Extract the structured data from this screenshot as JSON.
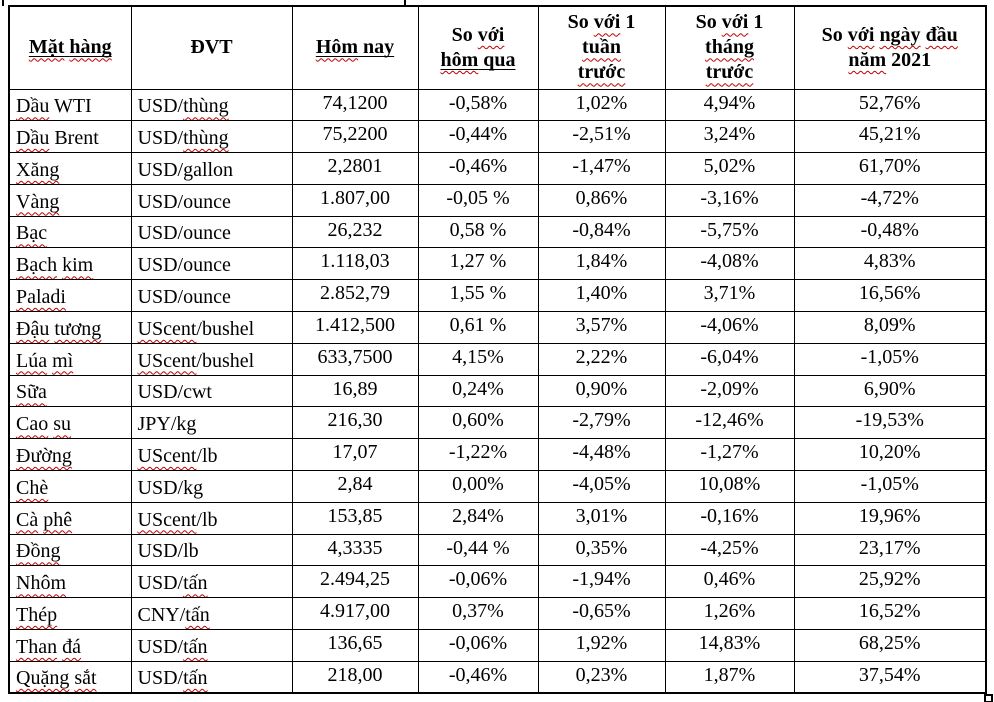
{
  "colors": {
    "text": "#000000",
    "border": "#000000",
    "background": "#ffffff"
  },
  "spellcheck": {
    "color": "#c00000",
    "words": [
      "Mặt",
      "hàng",
      "Hôm",
      "với",
      "hôm",
      "tuần",
      "trước",
      "tháng",
      "ngày",
      "đầu",
      "năm",
      "Dầu",
      "Xăng",
      "Vàng",
      "Bạc",
      "Bạch",
      "kim",
      "Paladi",
      "Đậu",
      "tương",
      "Lúa",
      "mì",
      "Sữa",
      "Cao",
      "su",
      "Đường",
      "Chè",
      "Cà",
      "phê",
      "Đồng",
      "Nhôm",
      "Thép",
      "Than",
      "đá",
      "Quặng",
      "sắt",
      "thùng",
      "UScent",
      "tấn"
    ]
  },
  "table": {
    "columns": [
      {
        "id": "name",
        "lines": [
          {
            "text": "Mặt hàng",
            "underline": true
          }
        ]
      },
      {
        "id": "unit",
        "lines": [
          {
            "text": "ĐVT",
            "underline": false
          }
        ]
      },
      {
        "id": "today",
        "lines": [
          {
            "text": "Hôm nay",
            "underline": true
          }
        ]
      },
      {
        "id": "vs_yesterday",
        "lines": [
          {
            "text": "So với",
            "underline": false
          },
          {
            "text": "hôm qua",
            "underline": true
          }
        ]
      },
      {
        "id": "vs_week",
        "lines": [
          {
            "text": "So với 1",
            "underline": false
          },
          {
            "text": "tuần",
            "underline": false
          },
          {
            "text": "trước",
            "underline": false
          }
        ]
      },
      {
        "id": "vs_month",
        "lines": [
          {
            "text": "So với 1",
            "underline": false
          },
          {
            "text": "tháng",
            "underline": false
          },
          {
            "text": "trước",
            "underline": false
          }
        ]
      },
      {
        "id": "vs_start_2021",
        "lines": [
          {
            "text": "So với ngày đầu",
            "underline": false
          },
          {
            "text": "năm 2021",
            "underline": false
          }
        ]
      }
    ],
    "rows": [
      {
        "name": "Dầu WTI",
        "unit": "USD/thùng",
        "today": "74,1200",
        "vs_yesterday": "-0,58%",
        "vs_week": "1,02%",
        "vs_month": "4,94%",
        "vs_start_2021": "52,76%"
      },
      {
        "name": "Dầu Brent",
        "unit": "USD/thùng",
        "today": "75,2200",
        "vs_yesterday": "-0,44%",
        "vs_week": "-2,51%",
        "vs_month": "3,24%",
        "vs_start_2021": "45,21%"
      },
      {
        "name": "Xăng",
        "unit": "USD/gallon",
        "today": "2,2801",
        "vs_yesterday": "-0,46%",
        "vs_week": "-1,47%",
        "vs_month": "5,02%",
        "vs_start_2021": "61,70%"
      },
      {
        "name": "Vàng",
        "unit": "USD/ounce",
        "today": "1.807,00",
        "vs_yesterday": "-0,05 %",
        "vs_week": "0,86%",
        "vs_month": "-3,16%",
        "vs_start_2021": "-4,72%"
      },
      {
        "name": "Bạc",
        "unit": "USD/ounce",
        "today": "26,232",
        "vs_yesterday": "0,58 %",
        "vs_week": "-0,84%",
        "vs_month": "-5,75%",
        "vs_start_2021": "-0,48%"
      },
      {
        "name": "Bạch kim",
        "unit": "USD/ounce",
        "today": "1.118,03",
        "vs_yesterday": "1,27 %",
        "vs_week": "1,84%",
        "vs_month": "-4,08%",
        "vs_start_2021": "4,83%"
      },
      {
        "name": "Paladi",
        "unit": "USD/ounce",
        "today": "2.852,79",
        "vs_yesterday": "1,55 %",
        "vs_week": "1,40%",
        "vs_month": "3,71%",
        "vs_start_2021": "16,56%"
      },
      {
        "name": "Đậu tương",
        "unit": "UScent/bushel",
        "today": "1.412,500",
        "vs_yesterday": "0,61 %",
        "vs_week": "3,57%",
        "vs_month": "-4,06%",
        "vs_start_2021": "8,09%"
      },
      {
        "name": "Lúa mì",
        "unit": "UScent/bushel",
        "today": "633,7500",
        "vs_yesterday": "4,15%",
        "vs_week": "2,22%",
        "vs_month": "-6,04%",
        "vs_start_2021": "-1,05%"
      },
      {
        "name": "Sữa",
        "unit": "USD/cwt",
        "today": "16,89",
        "vs_yesterday": "0,24%",
        "vs_week": "0,90%",
        "vs_month": "-2,09%",
        "vs_start_2021": "6,90%"
      },
      {
        "name": "Cao su",
        "unit": "JPY/kg",
        "today": "216,30",
        "vs_yesterday": "0,60%",
        "vs_week": "-2,79%",
        "vs_month": "-12,46%",
        "vs_start_2021": "-19,53%"
      },
      {
        "name": "Đường",
        "unit": "UScent/lb",
        "today": "17,07",
        "vs_yesterday": "-1,22%",
        "vs_week": "-4,48%",
        "vs_month": "-1,27%",
        "vs_start_2021": "10,20%"
      },
      {
        "name": "Chè",
        "unit": "USD/kg",
        "today": "2,84",
        "vs_yesterday": "0,00%",
        "vs_week": "-4,05%",
        "vs_month": "10,08%",
        "vs_start_2021": "-1,05%"
      },
      {
        "name": "Cà phê",
        "unit": "UScent/lb",
        "today": "153,85",
        "vs_yesterday": "2,84%",
        "vs_week": "3,01%",
        "vs_month": "-0,16%",
        "vs_start_2021": "19,96%"
      },
      {
        "name": "Đồng",
        "unit": "USD/lb",
        "today": "4,3335",
        "vs_yesterday": "-0,44 %",
        "vs_week": "0,35%",
        "vs_month": "-4,25%",
        "vs_start_2021": "23,17%"
      },
      {
        "name": "Nhôm",
        "unit": "USD/tấn",
        "today": "2.494,25",
        "vs_yesterday": "-0,06%",
        "vs_week": "-1,94%",
        "vs_month": "0,46%",
        "vs_start_2021": "25,92%"
      },
      {
        "name": "Thép",
        "unit": "CNY/tấn",
        "today": "4.917,00",
        "vs_yesterday": "0,37%",
        "vs_week": "-0,65%",
        "vs_month": "1,26%",
        "vs_start_2021": "16,52%"
      },
      {
        "name": "Than đá",
        "unit": "USD/tấn",
        "today": "136,65",
        "vs_yesterday": "-0,06%",
        "vs_week": "1,92%",
        "vs_month": "14,83%",
        "vs_start_2021": "68,25%"
      },
      {
        "name": "Quặng sắt",
        "unit": "USD/tấn",
        "today": "218,00",
        "vs_yesterday": "-0,46%",
        "vs_week": "0,23%",
        "vs_month": "1,87%",
        "vs_start_2021": "37,54%"
      }
    ]
  }
}
